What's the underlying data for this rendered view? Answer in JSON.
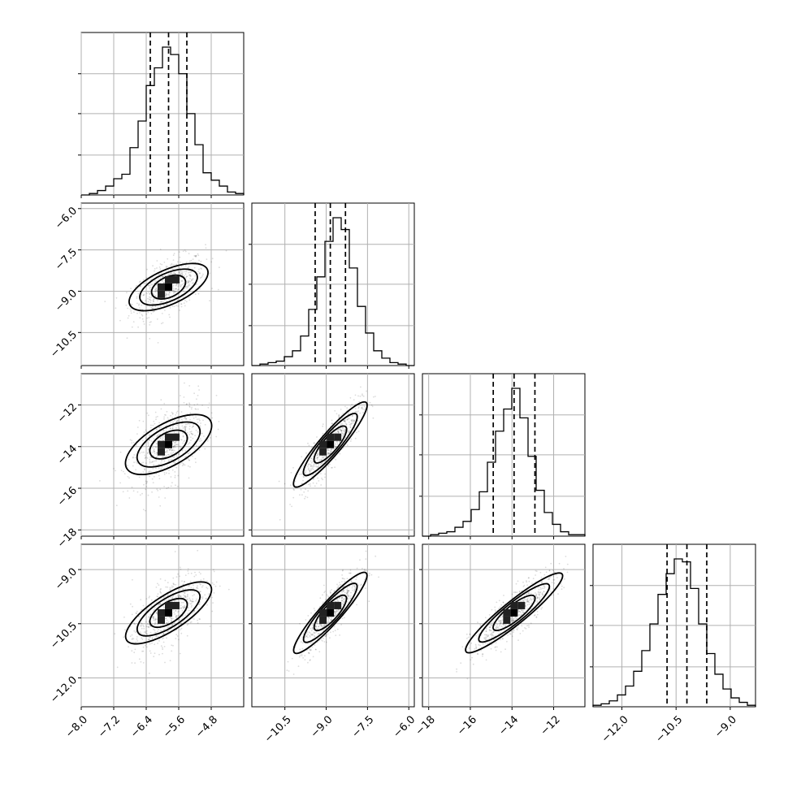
{
  "chart_data": {
    "type": "corner",
    "title": "",
    "parameters": [
      {
        "index": 0,
        "mean": -5.85,
        "std": 0.45,
        "range": [
          -8.0,
          -4.0
        ],
        "quantiles": [
          -6.3,
          -5.85,
          -5.4
        ]
      },
      {
        "index": 1,
        "mean": -8.85,
        "std": 0.55,
        "range": [
          -11.7,
          -5.8
        ],
        "quantiles": [
          -9.4,
          -8.85,
          -8.3
        ]
      },
      {
        "index": 2,
        "mean": -13.9,
        "std": 1.0,
        "range": [
          -18.3,
          -10.5
        ],
        "quantiles": [
          -14.9,
          -13.9,
          -12.9
        ]
      },
      {
        "index": 3,
        "mean": -10.2,
        "std": 0.55,
        "range": [
          -12.8,
          -8.3
        ],
        "quantiles": [
          -10.75,
          -10.2,
          -9.65
        ]
      }
    ],
    "correlations": {
      "1-0": 0.55,
      "2-0": 0.5,
      "2-1": 0.85,
      "3-0": 0.6,
      "3-1": 0.85,
      "3-2": 0.85
    },
    "x_tick_labels": [
      [
        "−8.0",
        "−7.2",
        "−6.4",
        "−5.6",
        "−4.8"
      ],
      [
        "−10.5",
        "−9.0",
        "−7.5",
        "−6.0"
      ],
      [
        "−18",
        "−16",
        "−14",
        "−12"
      ],
      [
        "−12.0",
        "−10.5",
        "−9.0"
      ]
    ],
    "y_tick_labels": [
      [],
      [
        "−6.0",
        "−7.5",
        "−9.0",
        "−10.5"
      ],
      [
        "−12",
        "−14",
        "−16",
        "−18"
      ],
      [
        "−9.0",
        "−10.5",
        "−12.0"
      ]
    ],
    "x_ticks": [
      [
        -8.0,
        -7.2,
        -6.4,
        -5.6,
        -4.8
      ],
      [
        -10.5,
        -9.0,
        -7.5,
        -6.0
      ],
      [
        -18,
        -16,
        -14,
        -12
      ],
      [
        -12.0,
        -10.5,
        -9.0
      ]
    ],
    "y_ticks": [
      [],
      [
        -6.0,
        -7.5,
        -9.0,
        -10.5
      ],
      [
        -12,
        -14,
        -16,
        -18
      ],
      [
        -9.0,
        -10.5,
        -12.0
      ]
    ],
    "histograms": [
      [
        0,
        1,
        3,
        6,
        11,
        14,
        32,
        50,
        74,
        86,
        100,
        95,
        82,
        55,
        34,
        15,
        10,
        6,
        2,
        1
      ],
      [
        0,
        1,
        2,
        3,
        6,
        10,
        20,
        38,
        60,
        84,
        100,
        92,
        66,
        40,
        22,
        10,
        5,
        2,
        1,
        0
      ],
      [
        0,
        1,
        2,
        3,
        6,
        10,
        18,
        30,
        50,
        71,
        86,
        100,
        80,
        54,
        31,
        16,
        8,
        3,
        1,
        1
      ],
      [
        1,
        2,
        4,
        8,
        14,
        24,
        38,
        56,
        76,
        90,
        100,
        98,
        80,
        56,
        36,
        22,
        12,
        6,
        3,
        1
      ]
    ],
    "legend": "none",
    "grid": true
  }
}
